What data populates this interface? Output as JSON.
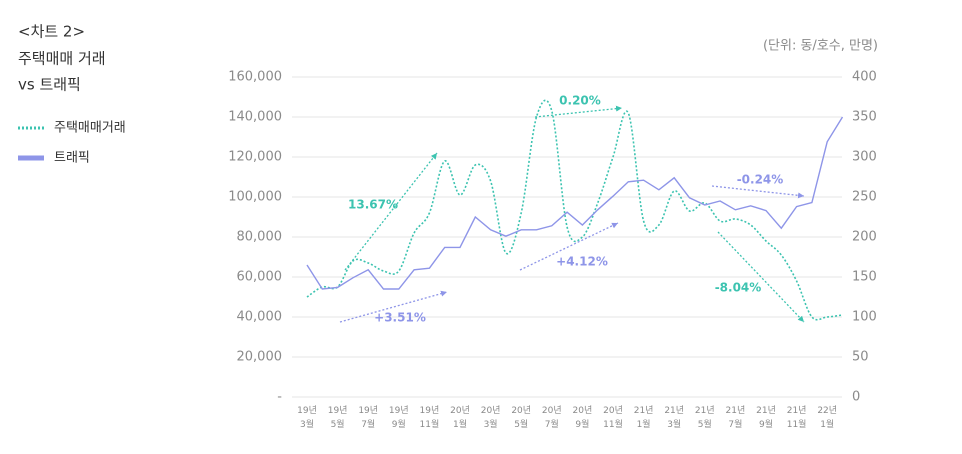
{
  "chart_data": {
    "type": "line",
    "title": [
      "<차트 2>",
      "주택매매 거래",
      "vs 트래픽"
    ],
    "unit": "(단위: 동/호수, 만명)",
    "categories": [
      "19년 3월",
      null,
      "19년 5월",
      null,
      "19년 7월",
      null,
      "19년 9월",
      null,
      "19년 11월",
      null,
      "20년 1월",
      null,
      "20년 3월",
      null,
      "20년 5월",
      null,
      "20년 7월",
      null,
      "20년 9월",
      null,
      "20년 11월",
      null,
      "21년 1월",
      null,
      "21년 3월",
      null,
      "21년 5월",
      null,
      "21년 7월",
      null,
      "21년 9월",
      null,
      "21년 11월",
      null,
      "22년 1월",
      null
    ],
    "series": [
      {
        "name": "주택매매거래",
        "color": "#3cc3b0",
        "style": "dotted",
        "values": [
          50000,
          55000,
          55000,
          68000,
          67000,
          63000,
          63000,
          82000,
          92000,
          118000,
          101000,
          116000,
          108000,
          72000,
          92000,
          140000,
          143000,
          85000,
          80000,
          97000,
          120000,
          142000,
          88000,
          86000,
          103000,
          93000,
          97000,
          88000,
          89000,
          86000,
          78000,
          71000,
          58000,
          40000,
          40000,
          41000
        ]
      },
      {
        "name": "트래픽",
        "color": "#8e95e8",
        "style": "solid",
        "axis": "y2",
        "values": [
          165,
          135,
          137,
          149,
          159,
          135,
          135,
          159,
          161,
          187,
          187,
          225,
          209,
          201,
          209,
          209,
          214,
          231,
          215,
          234,
          251,
          269,
          271,
          259,
          274,
          249,
          240,
          245,
          234,
          239,
          233,
          211,
          238,
          243,
          319,
          350
        ]
      }
    ],
    "ylim": [
      0,
      160000
    ],
    "yticks": [
      {
        "value": 0,
        "label": "-"
      },
      {
        "value": 20000,
        "label": "20,000"
      },
      {
        "value": 40000,
        "label": "40,000"
      },
      {
        "value": 60000,
        "label": "60,000"
      },
      {
        "value": 80000,
        "label": "80,000"
      },
      {
        "value": 100000,
        "label": "100,000"
      },
      {
        "value": 120000,
        "label": "120,000"
      },
      {
        "value": 140000,
        "label": "140,000"
      },
      {
        "value": 160000,
        "label": "160,000"
      }
    ],
    "y2lim": [
      0,
      400
    ],
    "y2ticks": [
      0,
      50,
      100,
      150,
      200,
      250,
      300,
      350,
      400
    ],
    "grid": true,
    "annotations": [
      {
        "text": "13.67%",
        "color": "#3cc3b0"
      },
      {
        "text": "0.20%",
        "color": "#3cc3b0"
      },
      {
        "text": "-8.04%",
        "color": "#3cc3b0"
      },
      {
        "text": "+3.51%",
        "color": "#8e95e8"
      },
      {
        "text": "+4.12%",
        "color": "#8e95e8"
      },
      {
        "text": "-0.24%",
        "color": "#8e95e8"
      }
    ]
  }
}
